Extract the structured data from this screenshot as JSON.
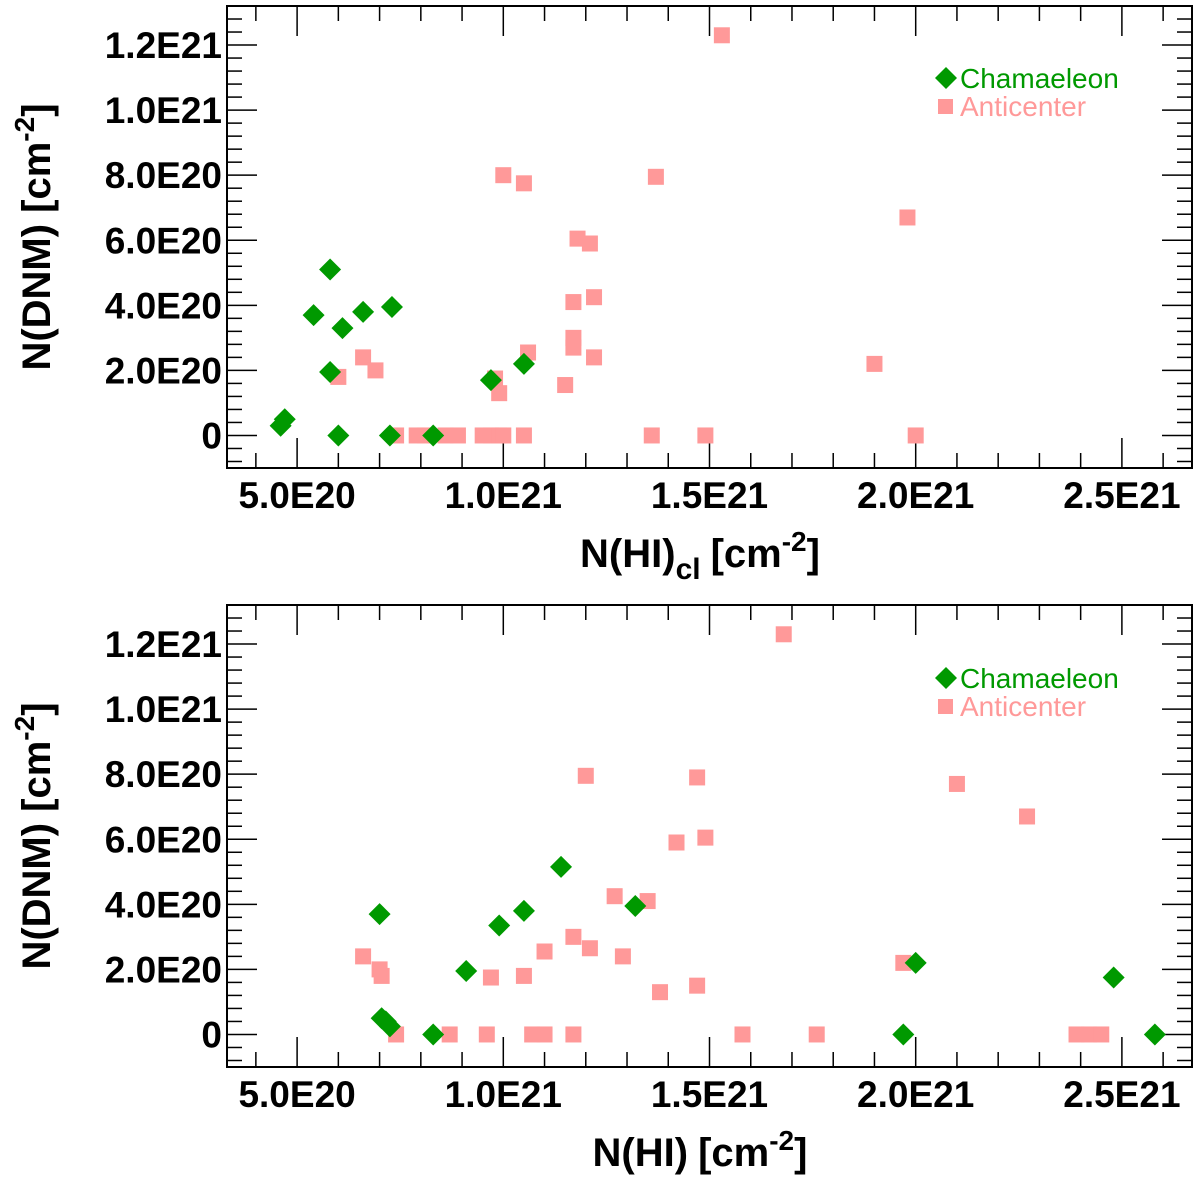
{
  "colors": {
    "chamaeleon": "#009900",
    "anticenter": "#ff9999",
    "axis": "#000000"
  },
  "chart_data": [
    {
      "type": "scatter",
      "xlabel": "N(HI)",
      "xlabel_sub": "cl",
      "xlabel_unit": "[cm",
      "ylabel": "N(DNM) [cm",
      "unit_exponent": "-2",
      "unit_close": "]",
      "xlim": [
        3.3e+20,
        2.67e+21
      ],
      "ylim": [
        -1e+20,
        1.32e+21
      ],
      "x_ticks": [
        5e+20,
        1e+21,
        1.5e+21,
        2e+21,
        2.5e+21
      ],
      "x_tick_labels": [
        "5.0E20",
        "1.0E21",
        "1.5E21",
        "2.0E21",
        "2.5E21"
      ],
      "y_ticks": [
        0,
        2e+20,
        4e+20,
        6e+20,
        8e+20,
        1e+21,
        1.2e+21
      ],
      "y_tick_labels": [
        "0",
        "2.0E20",
        "4.0E20",
        "6.0E20",
        "8.0E20",
        "1.0E21",
        "1.2E21"
      ],
      "legend": [
        "Chamaeleon",
        "Anticenter"
      ],
      "legend_position": "top-right",
      "series": [
        {
          "name": "Chamaeleon",
          "marker": "diamond",
          "points": [
            [
              4.6e+20,
              3e+19
            ],
            [
              4.7e+20,
              5e+19
            ],
            [
              5.4e+20,
              3.7e+20
            ],
            [
              5.8e+20,
              5.1e+20
            ],
            [
              6.1e+20,
              3.3e+20
            ],
            [
              5.8e+20,
              1.95e+20
            ],
            [
              6e+20,
              0
            ],
            [
              6.6e+20,
              3.8e+20
            ],
            [
              7.3e+20,
              3.95e+20
            ],
            [
              7.25e+20,
              0
            ],
            [
              8.3e+20,
              0
            ],
            [
              9.7e+20,
              1.7e+20
            ],
            [
              1.05e+21,
              2.2e+20
            ]
          ]
        },
        {
          "name": "Anticenter",
          "marker": "square",
          "points": [
            [
              1.53e+21,
              1.23e+21
            ],
            [
              1e+21,
              8e+20
            ],
            [
              1.05e+21,
              7.75e+20
            ],
            [
              1.37e+21,
              7.95e+20
            ],
            [
              1.98e+21,
              6.7e+20
            ],
            [
              1.18e+21,
              6.05e+20
            ],
            [
              1.21e+21,
              5.9e+20
            ],
            [
              1.17e+21,
              4.1e+20
            ],
            [
              1.22e+21,
              4.25e+20
            ],
            [
              1.17e+21,
              3e+20
            ],
            [
              1.17e+21,
              2.7e+20
            ],
            [
              1.06e+21,
              2.55e+20
            ],
            [
              6.6e+20,
              2.4e+20
            ],
            [
              1.22e+21,
              2.4e+20
            ],
            [
              6.9e+20,
              2e+20
            ],
            [
              1.9e+21,
              2.2e+20
            ],
            [
              6e+20,
              1.8e+20
            ],
            [
              9.8e+20,
              1.75e+20
            ],
            [
              1.15e+21,
              1.55e+20
            ],
            [
              9.9e+20,
              1.3e+20
            ],
            [
              7.4e+20,
              0
            ],
            [
              7.9e+20,
              0
            ],
            [
              8.1e+20,
              0
            ],
            [
              8.6e+20,
              0
            ],
            [
              8.9e+20,
              0
            ],
            [
              9.5e+20,
              0
            ],
            [
              9.7e+20,
              0
            ],
            [
              9.9e+20,
              0
            ],
            [
              1e+21,
              0
            ],
            [
              1.05e+21,
              0
            ],
            [
              1.36e+21,
              0
            ],
            [
              1.49e+21,
              0
            ],
            [
              2e+21,
              0
            ]
          ]
        }
      ]
    },
    {
      "type": "scatter",
      "xlabel": "N(HI)",
      "xlabel_sub": "",
      "xlabel_unit": "[cm",
      "ylabel": "N(DNM) [cm",
      "unit_exponent": "-2",
      "unit_close": "]",
      "xlim": [
        3.3e+20,
        2.67e+21
      ],
      "ylim": [
        -1e+20,
        1.32e+21
      ],
      "x_ticks": [
        5e+20,
        1e+21,
        1.5e+21,
        2e+21,
        2.5e+21
      ],
      "x_tick_labels": [
        "5.0E20",
        "1.0E21",
        "1.5E21",
        "2.0E21",
        "2.5E21"
      ],
      "y_ticks": [
        0,
        2e+20,
        4e+20,
        6e+20,
        8e+20,
        1e+21,
        1.2e+21
      ],
      "y_tick_labels": [
        "0",
        "2.0E20",
        "4.0E20",
        "6.0E20",
        "8.0E20",
        "1.0E21",
        "1.2E21"
      ],
      "legend": [
        "Chamaeleon",
        "Anticenter"
      ],
      "legend_position": "top-right",
      "series": [
        {
          "name": "Chamaeleon",
          "marker": "diamond",
          "points": [
            [
              7e+20,
              3.7e+20
            ],
            [
              7.05e+20,
              5e+19
            ],
            [
              7.15e+20,
              4e+19
            ],
            [
              7.25e+20,
              2.5e+19
            ],
            [
              8.3e+20,
              0
            ],
            [
              9.1e+20,
              1.95e+20
            ],
            [
              9.9e+20,
              3.35e+20
            ],
            [
              1.05e+21,
              3.8e+20
            ],
            [
              1.14e+21,
              5.15e+20
            ],
            [
              1.32e+21,
              3.95e+20
            ],
            [
              1.97e+21,
              0
            ],
            [
              2e+21,
              2.2e+20
            ],
            [
              2.48e+21,
              1.75e+20
            ],
            [
              2.58e+21,
              0
            ]
          ]
        },
        {
          "name": "Anticenter",
          "marker": "square",
          "points": [
            [
              1.68e+21,
              1.23e+21
            ],
            [
              1.2e+21,
              7.95e+20
            ],
            [
              1.47e+21,
              7.9e+20
            ],
            [
              2.1e+21,
              7.7e+20
            ],
            [
              2.27e+21,
              6.7e+20
            ],
            [
              1.42e+21,
              5.9e+20
            ],
            [
              1.49e+21,
              6.05e+20
            ],
            [
              1.27e+21,
              4.25e+20
            ],
            [
              1.35e+21,
              4.1e+20
            ],
            [
              1.17e+21,
              3e+20
            ],
            [
              1.21e+21,
              2.65e+20
            ],
            [
              1.1e+21,
              2.55e+20
            ],
            [
              6.6e+20,
              2.4e+20
            ],
            [
              1.29e+21,
              2.4e+20
            ],
            [
              7e+20,
              2e+20
            ],
            [
              7.05e+20,
              1.8e+20
            ],
            [
              9.7e+20,
              1.75e+20
            ],
            [
              1.05e+21,
              1.8e+20
            ],
            [
              1.97e+21,
              2.2e+20
            ],
            [
              1.38e+21,
              1.3e+20
            ],
            [
              1.47e+21,
              1.5e+20
            ],
            [
              7.4e+20,
              0
            ],
            [
              8.7e+20,
              0
            ],
            [
              9.6e+20,
              0
            ],
            [
              1.07e+21,
              0
            ],
            [
              1.1e+21,
              0
            ],
            [
              1.17e+21,
              0
            ],
            [
              1.58e+21,
              0
            ],
            [
              1.76e+21,
              0
            ],
            [
              2.39e+21,
              0
            ],
            [
              2.42e+21,
              0
            ],
            [
              2.45e+21,
              0
            ]
          ]
        }
      ]
    }
  ]
}
